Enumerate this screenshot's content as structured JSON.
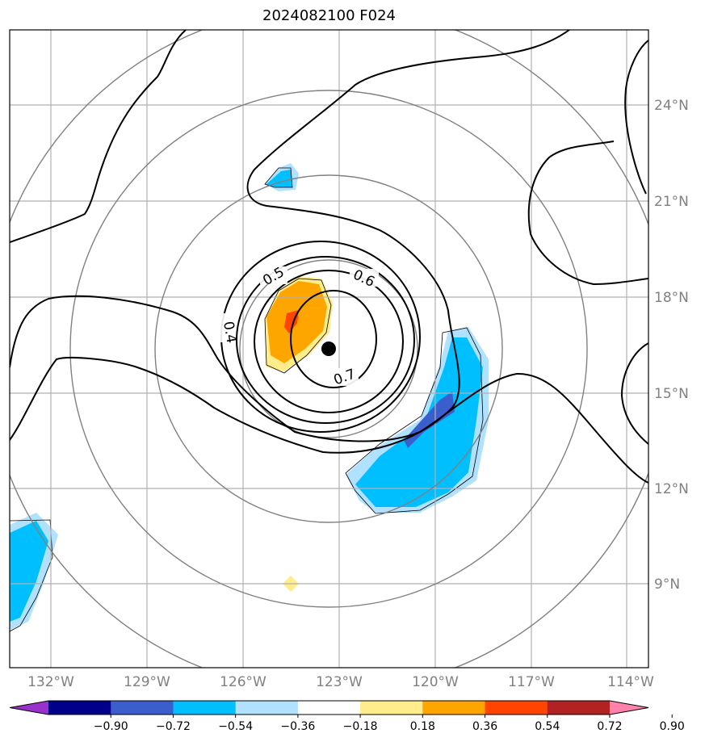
{
  "title": "2024082100 F024",
  "lat_labels": [
    "24°N",
    "21°N",
    "18°N",
    "15°N",
    "12°N",
    "9°N"
  ],
  "lon_labels": [
    "132°W",
    "129°W",
    "126°W",
    "123°W",
    "120°W",
    "117°W",
    "114°W"
  ],
  "contour_labels": [
    "0.4",
    "0.5",
    "0.6",
    "0.7"
  ],
  "colorbar": {
    "ticks": [
      "−0.90",
      "−0.72",
      "−0.54",
      "−0.36",
      "−0.18",
      "0.18",
      "0.36",
      "0.54",
      "0.72",
      "0.90"
    ],
    "colors": [
      "#9932CC",
      "#00008B",
      "#3A5FCD",
      "#00BFFF",
      "#B0E2FF",
      "#FFFFFF",
      "#FFEC8B",
      "#FFA500",
      "#FF4500",
      "#B22222",
      "#FF82AB"
    ]
  },
  "storm_center": {
    "lat": 16.4,
    "lon": -123.3
  }
}
